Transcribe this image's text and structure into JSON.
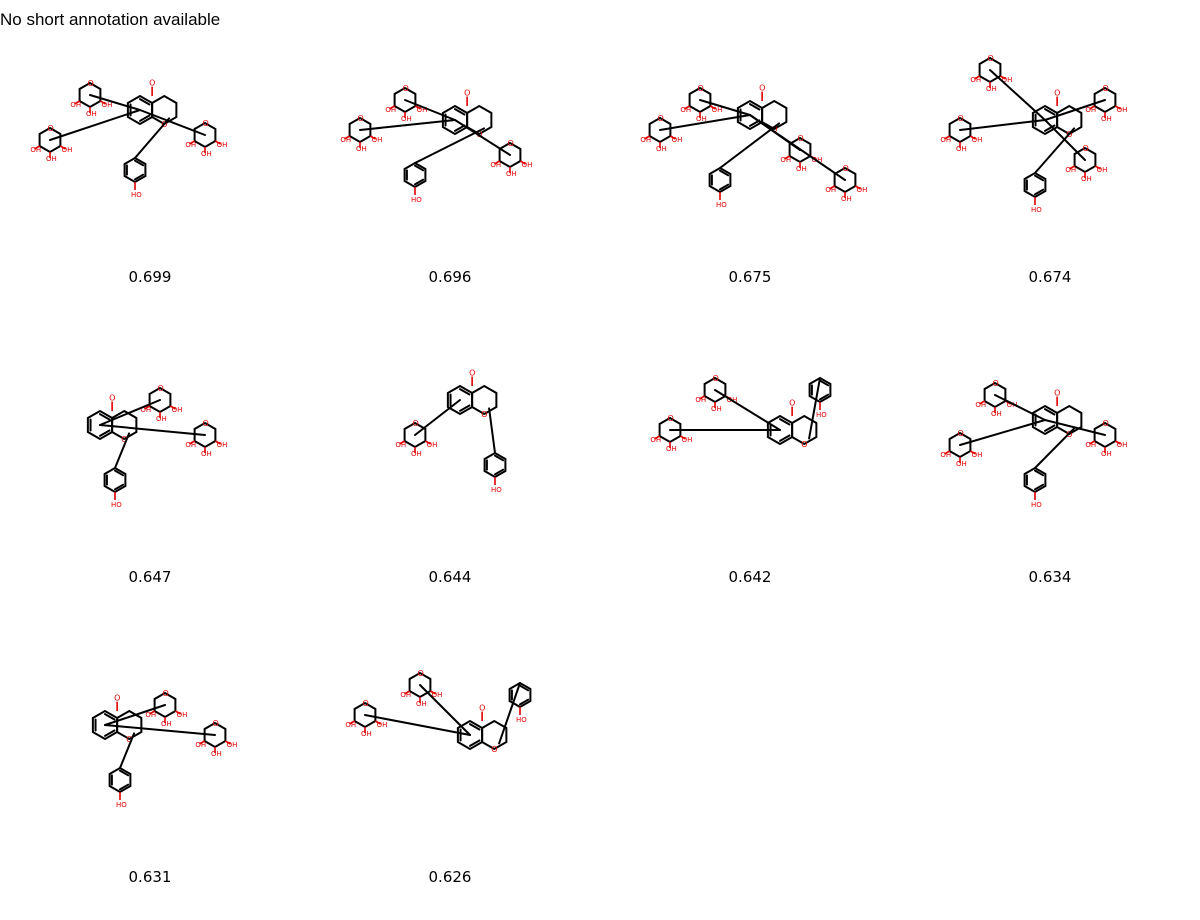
{
  "annotation": "No short annotation available",
  "molecules": [
    {
      "score": "0.699"
    },
    {
      "score": "0.696"
    },
    {
      "score": "0.675"
    },
    {
      "score": "0.674"
    },
    {
      "score": "0.647"
    },
    {
      "score": "0.644"
    },
    {
      "score": "0.642"
    },
    {
      "score": "0.634"
    },
    {
      "score": "0.631"
    },
    {
      "score": "0.626"
    }
  ]
}
